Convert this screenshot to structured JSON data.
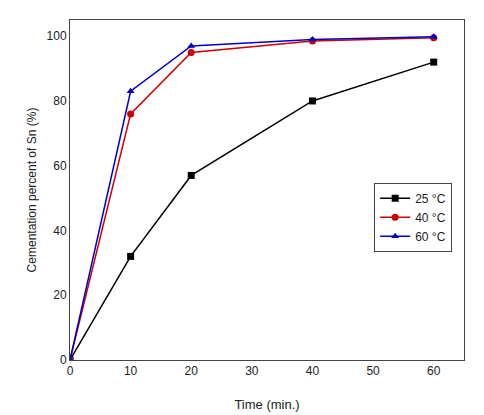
{
  "chart_data": {
    "type": "line",
    "xlabel": "Time (min.)",
    "ylabel": "Cementation percent of Sn (%)",
    "x": [
      0,
      10,
      20,
      40,
      60
    ],
    "series": [
      {
        "name": "25 °C",
        "color": "#000000",
        "marker": "square",
        "line_style": "solid",
        "values": [
          0,
          32,
          57,
          80,
          92
        ]
      },
      {
        "name": "40 °C",
        "color": "#cc0000",
        "marker": "circle",
        "line_style": "solid",
        "values": [
          0,
          76,
          95,
          98.5,
          99.5
        ]
      },
      {
        "name": "60 °C",
        "color": "#0000cc",
        "marker": "triangle",
        "line_style": "solid",
        "values": [
          0,
          83,
          97,
          99,
          99.8
        ]
      }
    ],
    "xlim": [
      0,
      65
    ],
    "ylim": [
      0,
      105
    ],
    "xticks": [
      0,
      10,
      20,
      30,
      40,
      50,
      60
    ],
    "yticks": [
      0,
      20,
      40,
      60,
      80,
      100
    ],
    "grid": false,
    "legend": "right"
  }
}
